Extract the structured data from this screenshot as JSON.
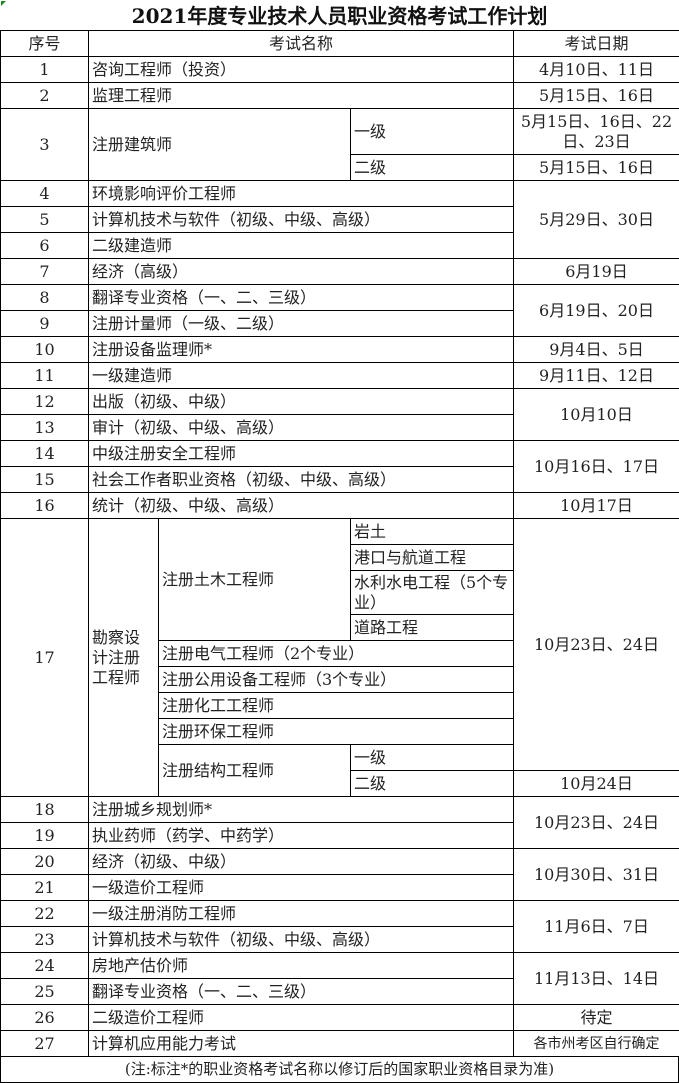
{
  "title": "2021年度专业技术人员职业资格考试工作计划",
  "header": {
    "no": "序号",
    "name": "考试名称",
    "date": "考试日期"
  },
  "rows": {
    "r1": {
      "no": "1",
      "name": "咨询工程师（投资）",
      "date": "4月10日、11日"
    },
    "r2": {
      "no": "2",
      "name": "监理工程师",
      "date": "5月15日、16日"
    },
    "r3": {
      "no": "3",
      "name": "注册建筑师",
      "levels": [
        {
          "level": "一级",
          "date": "5月15日、16日、22日、23日"
        },
        {
          "level": "二级",
          "date": "5月15日、16日"
        }
      ]
    },
    "r4": {
      "no": "4",
      "name": "环境影响评价工程师",
      "date": "5月29日、30日"
    },
    "r5": {
      "no": "5",
      "name": "计算机技术与软件（初级、中级、高级）"
    },
    "r6": {
      "no": "6",
      "name": "二级建造师"
    },
    "r7": {
      "no": "7",
      "name": "经济（高级）",
      "date": "6月19日"
    },
    "r8": {
      "no": "8",
      "name": "翻译专业资格（一、二、三级）",
      "date": "6月19日、20日"
    },
    "r9": {
      "no": "9",
      "name": "注册计量师（一级、二级）"
    },
    "r10": {
      "no": "10",
      "name": "注册设备监理师*",
      "date": "9月4日、5日"
    },
    "r11": {
      "no": "11",
      "name": "一级建造师",
      "date": "9月11日、12日"
    },
    "r12": {
      "no": "12",
      "name": "出版（初级、中级）",
      "date": "10月10日"
    },
    "r13": {
      "no": "13",
      "name": "审计（初级、中级、高级）"
    },
    "r14": {
      "no": "14",
      "name": "中级注册安全工程师",
      "date": "10月16日、17日"
    },
    "r15": {
      "no": "15",
      "name": "社会工作者职业资格（初级、中级、高级）"
    },
    "r16": {
      "no": "16",
      "name": "统计（初级、中级、高级）",
      "date": "10月17日"
    },
    "r17": {
      "no": "17",
      "name": "勘察设计注册工程师",
      "date": "10月23日、24日",
      "civil": {
        "name": "注册土木工程师",
        "subs": [
          "岩土",
          "港口与航道工程",
          "水利水电工程（5个专业）",
          "道路工程"
        ]
      },
      "others": [
        "注册电气工程师（2个专业）",
        "注册公用设备工程师（3个专业）",
        "注册化工工程师",
        "注册环保工程师"
      ],
      "structural": {
        "name": "注册结构工程师",
        "levels": [
          "一级",
          "二级"
        ],
        "level2_date": "10月24日"
      }
    },
    "r18": {
      "no": "18",
      "name": "注册城乡规划师*",
      "date": "10月23日、24日"
    },
    "r19": {
      "no": "19",
      "name": "执业药师（药学、中药学）"
    },
    "r20": {
      "no": "20",
      "name": "经济（初级、中级）",
      "date": "10月30日、31日"
    },
    "r21": {
      "no": "21",
      "name": "一级造价工程师"
    },
    "r22": {
      "no": "22",
      "name": "一级注册消防工程师",
      "date": "11月6日、7日"
    },
    "r23": {
      "no": "23",
      "name": "计算机技术与软件（初级、中级、高级）"
    },
    "r24": {
      "no": "24",
      "name": "房地产估价师",
      "date": "11月13日、14日"
    },
    "r25": {
      "no": "25",
      "name": "翻译专业资格（一、二、三级）"
    },
    "r26": {
      "no": "26",
      "name": "二级造价工程师",
      "date": "待定"
    },
    "r27": {
      "no": "27",
      "name": "计算机应用能力考试",
      "date": "各市州考区自行确定"
    }
  },
  "footnote": "(注:标注*的职业资格考试名称以修订后的国家职业资格目录为准)"
}
